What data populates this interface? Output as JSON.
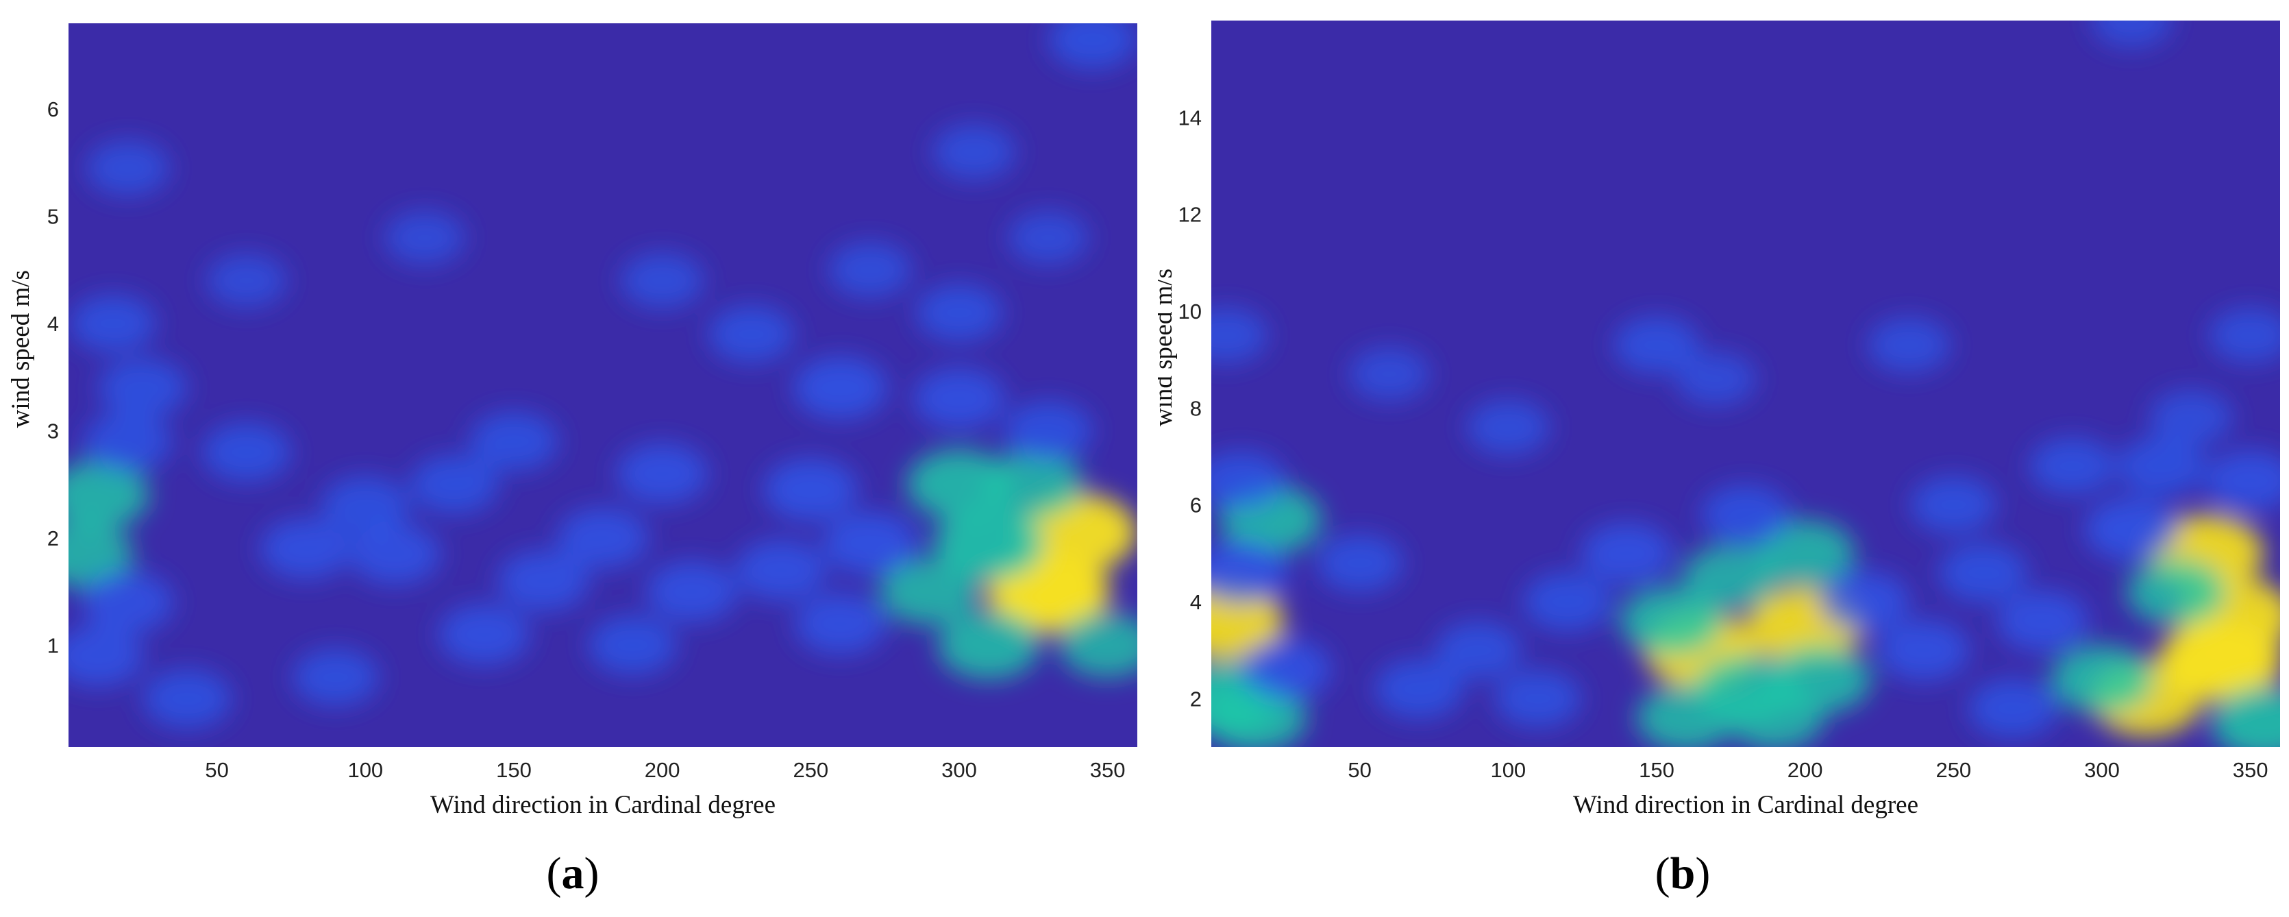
{
  "colors": {
    "background": "#3b2ba8",
    "low": "#2c5bf0",
    "mid": "#1ec8a8",
    "high": "#f5e020"
  },
  "chart_data": [
    {
      "type": "heatmap",
      "panel_label": "a",
      "xlabel": "Wind direction in Cardinal degree",
      "ylabel": "wind speed  m/s",
      "xlim": [
        0,
        360
      ],
      "ylim": [
        0.05,
        6.8
      ],
      "x_ticks": [
        50,
        100,
        150,
        200,
        250,
        300,
        350
      ],
      "y_ticks": [
        1,
        2,
        3,
        4,
        5,
        6
      ],
      "grid": false,
      "hotspots": [
        {
          "x": 330,
          "y": 1.5,
          "v": 1.0
        },
        {
          "x": 340,
          "y": 2.05,
          "v": 0.9
        },
        {
          "x": 310,
          "y": 1.95,
          "v": 0.75
        },
        {
          "x": 300,
          "y": 2.5,
          "v": 0.65
        },
        {
          "x": 325,
          "y": 2.5,
          "v": 0.55
        },
        {
          "x": 310,
          "y": 1.0,
          "v": 0.6
        },
        {
          "x": 290,
          "y": 1.5,
          "v": 0.55
        },
        {
          "x": 350,
          "y": 1.0,
          "v": 0.5
        },
        {
          "x": 270,
          "y": 1.95,
          "v": 0.45
        },
        {
          "x": 260,
          "y": 1.2,
          "v": 0.4
        },
        {
          "x": 250,
          "y": 2.45,
          "v": 0.45
        },
        {
          "x": 240,
          "y": 1.7,
          "v": 0.4
        },
        {
          "x": 10,
          "y": 2.4,
          "v": 0.6
        },
        {
          "x": 5,
          "y": 1.85,
          "v": 0.55
        },
        {
          "x": 20,
          "y": 1.4,
          "v": 0.4
        },
        {
          "x": 10,
          "y": 0.9,
          "v": 0.4
        },
        {
          "x": 25,
          "y": 3.4,
          "v": 0.35
        },
        {
          "x": 20,
          "y": 2.9,
          "v": 0.35
        },
        {
          "x": 80,
          "y": 1.9,
          "v": 0.4
        },
        {
          "x": 110,
          "y": 1.85,
          "v": 0.4
        },
        {
          "x": 100,
          "y": 2.3,
          "v": 0.35
        },
        {
          "x": 140,
          "y": 1.1,
          "v": 0.4
        },
        {
          "x": 160,
          "y": 1.6,
          "v": 0.4
        },
        {
          "x": 180,
          "y": 2.0,
          "v": 0.4
        },
        {
          "x": 200,
          "y": 2.6,
          "v": 0.4
        },
        {
          "x": 210,
          "y": 1.5,
          "v": 0.4
        },
        {
          "x": 190,
          "y": 1.0,
          "v": 0.35
        },
        {
          "x": 130,
          "y": 2.5,
          "v": 0.35
        },
        {
          "x": 260,
          "y": 3.4,
          "v": 0.45
        },
        {
          "x": 300,
          "y": 3.3,
          "v": 0.4
        },
        {
          "x": 330,
          "y": 3.0,
          "v": 0.35
        },
        {
          "x": 60,
          "y": 2.8,
          "v": 0.35
        },
        {
          "x": 40,
          "y": 0.5,
          "v": 0.35
        },
        {
          "x": 90,
          "y": 0.7,
          "v": 0.3
        },
        {
          "x": 150,
          "y": 2.9,
          "v": 0.35
        },
        {
          "x": 230,
          "y": 3.9,
          "v": 0.3
        },
        {
          "x": 300,
          "y": 4.1,
          "v": 0.3
        },
        {
          "x": 15,
          "y": 4.0,
          "v": 0.3
        },
        {
          "x": 345,
          "y": 6.65,
          "v": 0.35
        },
        {
          "x": 305,
          "y": 5.6,
          "v": 0.25
        },
        {
          "x": 20,
          "y": 5.45,
          "v": 0.25
        },
        {
          "x": 120,
          "y": 4.8,
          "v": 0.2
        },
        {
          "x": 200,
          "y": 4.4,
          "v": 0.25
        },
        {
          "x": 270,
          "y": 4.5,
          "v": 0.25
        },
        {
          "x": 60,
          "y": 4.4,
          "v": 0.2
        },
        {
          "x": 330,
          "y": 4.8,
          "v": 0.2
        }
      ]
    },
    {
      "type": "heatmap",
      "panel_label": "b",
      "xlabel": "Wind direction in Cardinal degree",
      "ylabel": "wind speed  m/s",
      "xlim": [
        0,
        360
      ],
      "ylim": [
        1.0,
        16.0
      ],
      "x_ticks": [
        50,
        100,
        150,
        200,
        250,
        300,
        350
      ],
      "y_ticks": [
        2,
        4,
        6,
        8,
        10,
        12,
        14
      ],
      "grid": false,
      "hotspots": [
        {
          "x": 340,
          "y": 2.8,
          "v": 1.0
        },
        {
          "x": 335,
          "y": 5.0,
          "v": 0.85
        },
        {
          "x": 315,
          "y": 2.0,
          "v": 0.8
        },
        {
          "x": 345,
          "y": 3.7,
          "v": 0.85
        },
        {
          "x": 355,
          "y": 1.5,
          "v": 0.7
        },
        {
          "x": 300,
          "y": 2.4,
          "v": 0.6
        },
        {
          "x": 325,
          "y": 4.2,
          "v": 0.55
        },
        {
          "x": 310,
          "y": 5.5,
          "v": 0.45
        },
        {
          "x": 350,
          "y": 6.5,
          "v": 0.4
        },
        {
          "x": 320,
          "y": 6.8,
          "v": 0.35
        },
        {
          "x": 165,
          "y": 3.0,
          "v": 0.85
        },
        {
          "x": 200,
          "y": 3.5,
          "v": 0.85
        },
        {
          "x": 155,
          "y": 3.6,
          "v": 0.6
        },
        {
          "x": 180,
          "y": 2.2,
          "v": 0.6
        },
        {
          "x": 205,
          "y": 2.4,
          "v": 0.6
        },
        {
          "x": 200,
          "y": 5.0,
          "v": 0.55
        },
        {
          "x": 175,
          "y": 4.5,
          "v": 0.5
        },
        {
          "x": 160,
          "y": 1.6,
          "v": 0.55
        },
        {
          "x": 190,
          "y": 1.6,
          "v": 0.5
        },
        {
          "x": 220,
          "y": 4.0,
          "v": 0.4
        },
        {
          "x": 140,
          "y": 5.0,
          "v": 0.4
        },
        {
          "x": 180,
          "y": 5.8,
          "v": 0.35
        },
        {
          "x": 5,
          "y": 3.6,
          "v": 0.85
        },
        {
          "x": 5,
          "y": 2.0,
          "v": 0.75
        },
        {
          "x": 15,
          "y": 1.6,
          "v": 0.6
        },
        {
          "x": 20,
          "y": 5.7,
          "v": 0.6
        },
        {
          "x": 10,
          "y": 4.6,
          "v": 0.45
        },
        {
          "x": 25,
          "y": 2.6,
          "v": 0.4
        },
        {
          "x": 10,
          "y": 6.5,
          "v": 0.35
        },
        {
          "x": 70,
          "y": 2.2,
          "v": 0.35
        },
        {
          "x": 50,
          "y": 4.8,
          "v": 0.3
        },
        {
          "x": 90,
          "y": 3.0,
          "v": 0.3
        },
        {
          "x": 110,
          "y": 2.0,
          "v": 0.3
        },
        {
          "x": 120,
          "y": 4.0,
          "v": 0.35
        },
        {
          "x": 240,
          "y": 3.0,
          "v": 0.4
        },
        {
          "x": 260,
          "y": 4.6,
          "v": 0.35
        },
        {
          "x": 280,
          "y": 3.6,
          "v": 0.4
        },
        {
          "x": 270,
          "y": 1.8,
          "v": 0.35
        },
        {
          "x": 250,
          "y": 6.0,
          "v": 0.3
        },
        {
          "x": 290,
          "y": 6.8,
          "v": 0.3
        },
        {
          "x": 150,
          "y": 9.3,
          "v": 0.3
        },
        {
          "x": 235,
          "y": 9.3,
          "v": 0.25
        },
        {
          "x": 5,
          "y": 9.5,
          "v": 0.25
        },
        {
          "x": 350,
          "y": 9.5,
          "v": 0.25
        },
        {
          "x": 60,
          "y": 8.7,
          "v": 0.2
        },
        {
          "x": 100,
          "y": 7.6,
          "v": 0.25
        },
        {
          "x": 330,
          "y": 7.8,
          "v": 0.25
        },
        {
          "x": 170,
          "y": 8.6,
          "v": 0.2
        },
        {
          "x": 310,
          "y": 16.0,
          "v": 0.2
        }
      ]
    }
  ]
}
